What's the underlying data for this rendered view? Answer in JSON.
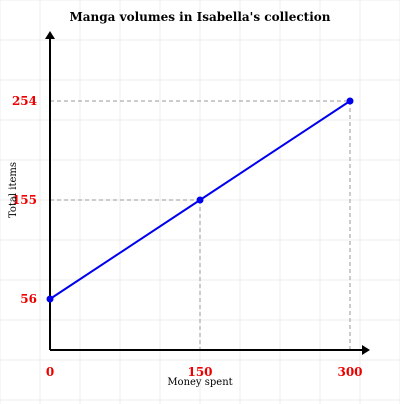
{
  "chart_data": {
    "type": "line",
    "title": "Manga volumes in Isabella's collection",
    "xlabel": "Money spent",
    "ylabel": "Total items",
    "xlim": [
      0,
      320
    ],
    "ylim": [
      0,
      310
    ],
    "grid": true,
    "series": [
      {
        "name": "",
        "x": [
          0,
          150,
          300
        ],
        "y": [
          56,
          155,
          254
        ]
      }
    ],
    "x_ticks": [
      0,
      150,
      300
    ],
    "y_ticks": [
      56,
      155,
      254
    ],
    "x_tick_labels": [
      "0",
      "150",
      "300"
    ],
    "y_tick_labels": [
      "56",
      "155",
      "254"
    ],
    "colors": {
      "line": "#0000ee",
      "tick_label": "#ee0000",
      "guide": "#999999",
      "grid": "#eeeeee",
      "axis": "#000000"
    }
  }
}
